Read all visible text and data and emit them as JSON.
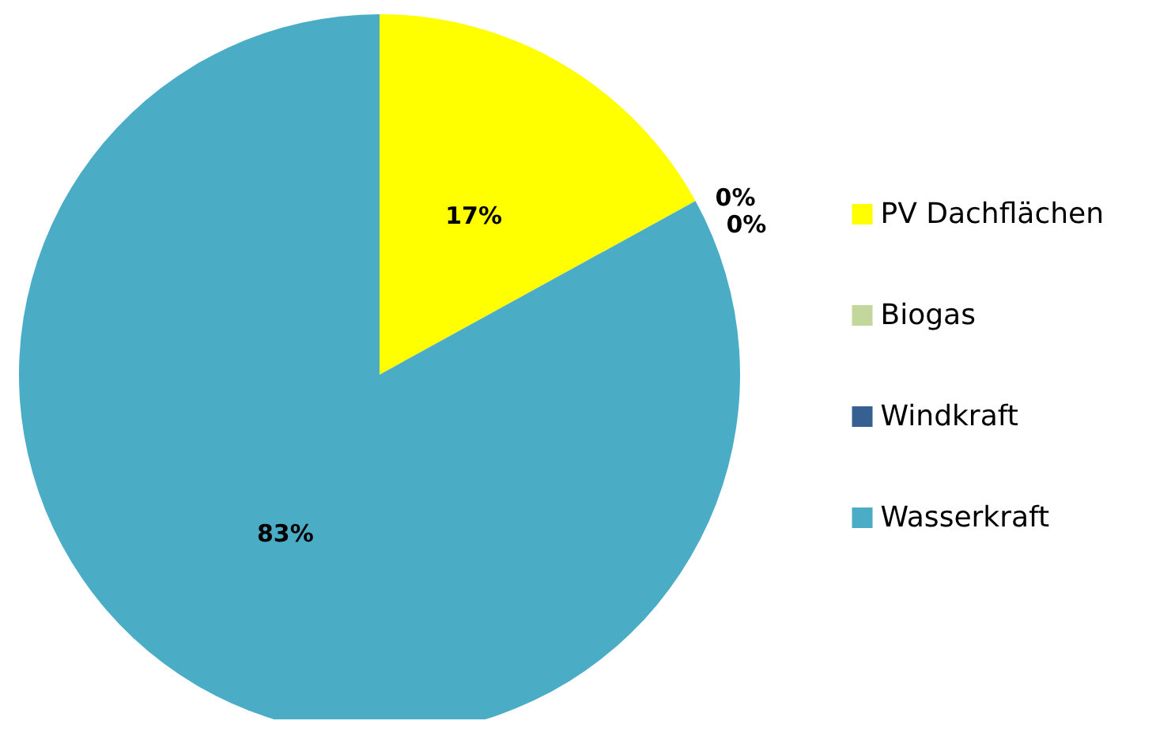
{
  "chart_data": {
    "type": "pie",
    "categories": [
      "PV Dachflächen",
      "Biogas",
      "Windkraft",
      "Wasserkraft"
    ],
    "values": [
      17,
      0,
      0,
      83
    ],
    "colors": [
      "#ffff00",
      "#c3d69b",
      "#376092",
      "#4bacc6"
    ],
    "value_labels": [
      "17%",
      "0%",
      "0%",
      "83%"
    ],
    "legend": "right"
  }
}
